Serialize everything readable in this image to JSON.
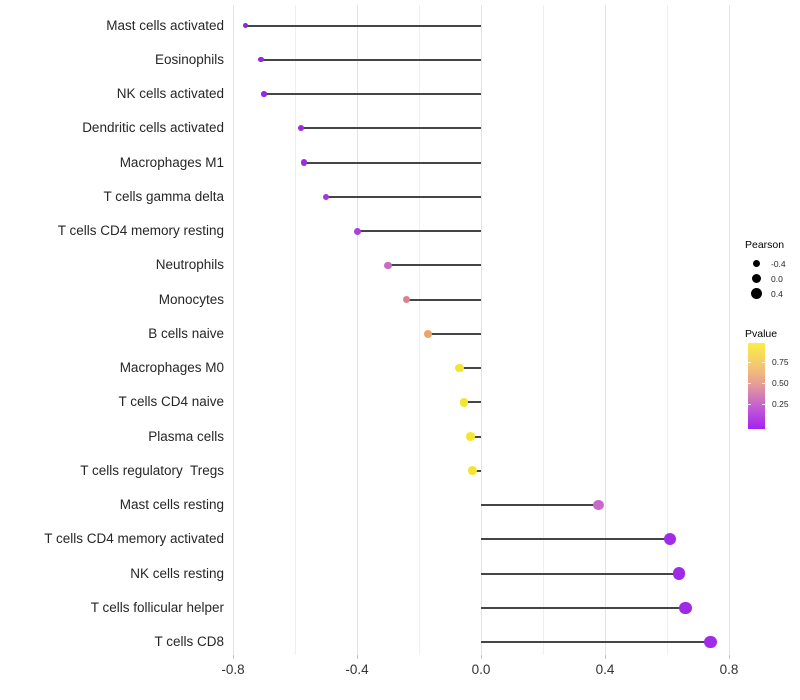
{
  "chart_data": {
    "type": "scatter",
    "subtype": "lollipop",
    "title": "",
    "xlabel": "",
    "ylabel": "",
    "xlim": [
      -0.9,
      0.85
    ],
    "grid": "vertical-only",
    "background": "#ffffff",
    "stick_color": "#454545",
    "categories": [
      "Mast cells activated",
      "Eosinophils",
      "NK cells activated",
      "Dendritic cells activated",
      "Macrophages M1",
      "T cells gamma delta",
      "T cells CD4 memory resting",
      "Neutrophils",
      "Monocytes",
      "B cells naive",
      "Macrophages M0",
      "T cells CD4 naive",
      "Plasma cells",
      "T cells regulatory  Tregs",
      "Mast cells resting",
      "T cells CD4 memory activated",
      "NK cells resting",
      "T cells follicular helper",
      "T cells CD8"
    ],
    "points": [
      {
        "label": "Mast cells activated",
        "pearson": -0.76,
        "color": "#8F25DB"
      },
      {
        "label": "Eosinophils",
        "pearson": -0.71,
        "color": "#9727E2"
      },
      {
        "label": "NK cells activated",
        "pearson": -0.7,
        "color": "#9727E2"
      },
      {
        "label": "Dendritic cells activated",
        "pearson": -0.58,
        "color": "#9C2CE2"
      },
      {
        "label": "Macrophages M1",
        "pearson": -0.57,
        "color": "#9C2CE2"
      },
      {
        "label": "T cells gamma delta",
        "pearson": -0.5,
        "color": "#A236DF"
      },
      {
        "label": "T cells CD4 memory resting",
        "pearson": -0.4,
        "color": "#A743DC"
      },
      {
        "label": "Neutrophils",
        "pearson": -0.3,
        "color": "#C869C5"
      },
      {
        "label": "Monocytes",
        "pearson": -0.24,
        "color": "#D9818D"
      },
      {
        "label": "B cells naive",
        "pearson": -0.17,
        "color": "#ECA566"
      },
      {
        "label": "Macrophages M0",
        "pearson": -0.07,
        "color": "#F2E434"
      },
      {
        "label": "T cells CD4 naive",
        "pearson": -0.055,
        "color": "#F3E52F"
      },
      {
        "label": "Plasma cells",
        "pearson": -0.034,
        "color": "#F5E62B"
      },
      {
        "label": "T cells regulatory  Tregs",
        "pearson": -0.027,
        "color": "#F3E333"
      },
      {
        "label": "Mast cells resting",
        "pearson": 0.38,
        "color": "#C969CE"
      },
      {
        "label": "T cells CD4 memory activated",
        "pearson": 0.61,
        "color": "#A02CE8"
      },
      {
        "label": "NK cells resting",
        "pearson": 0.64,
        "color": "#9F2AE7"
      },
      {
        "label": "T cells follicular helper",
        "pearson": 0.66,
        "color": "#9E29E6"
      },
      {
        "label": "T cells CD8",
        "pearson": 0.74,
        "color": "#A02CE8"
      }
    ],
    "x_ticks": [
      {
        "label": "-0.8",
        "value": -0.8
      },
      {
        "label": "-0.4",
        "value": -0.4
      },
      {
        "label": "0.0",
        "value": 0.0
      },
      {
        "label": "0.4",
        "value": 0.4
      },
      {
        "label": "0.8",
        "value": 0.8
      }
    ],
    "x_minor_ticks": [
      -0.6,
      -0.2,
      0.2,
      0.6
    ],
    "legend": {
      "size": {
        "title": "Pearson",
        "entries": [
          {
            "label": "-0.4",
            "value": -0.4
          },
          {
            "label": "0.0",
            "value": 0.0
          },
          {
            "label": "0.4",
            "value": 0.4
          }
        ],
        "dot_color": "#000000"
      },
      "color": {
        "title": "Pvalue",
        "ticks": [
          {
            "label": "0.75",
            "frac_from_top": 0.22
          },
          {
            "label": "0.50",
            "frac_from_top": 0.465
          },
          {
            "label": "0.25",
            "frac_from_top": 0.715
          }
        ],
        "gradient_stops": [
          {
            "color": "#FBEE44",
            "at": 0
          },
          {
            "color": "#F3C474",
            "at": 0.28
          },
          {
            "color": "#E59D96",
            "at": 0.48
          },
          {
            "color": "#C45ED1",
            "at": 0.74
          },
          {
            "color": "#A521F5",
            "at": 1
          }
        ]
      }
    }
  }
}
